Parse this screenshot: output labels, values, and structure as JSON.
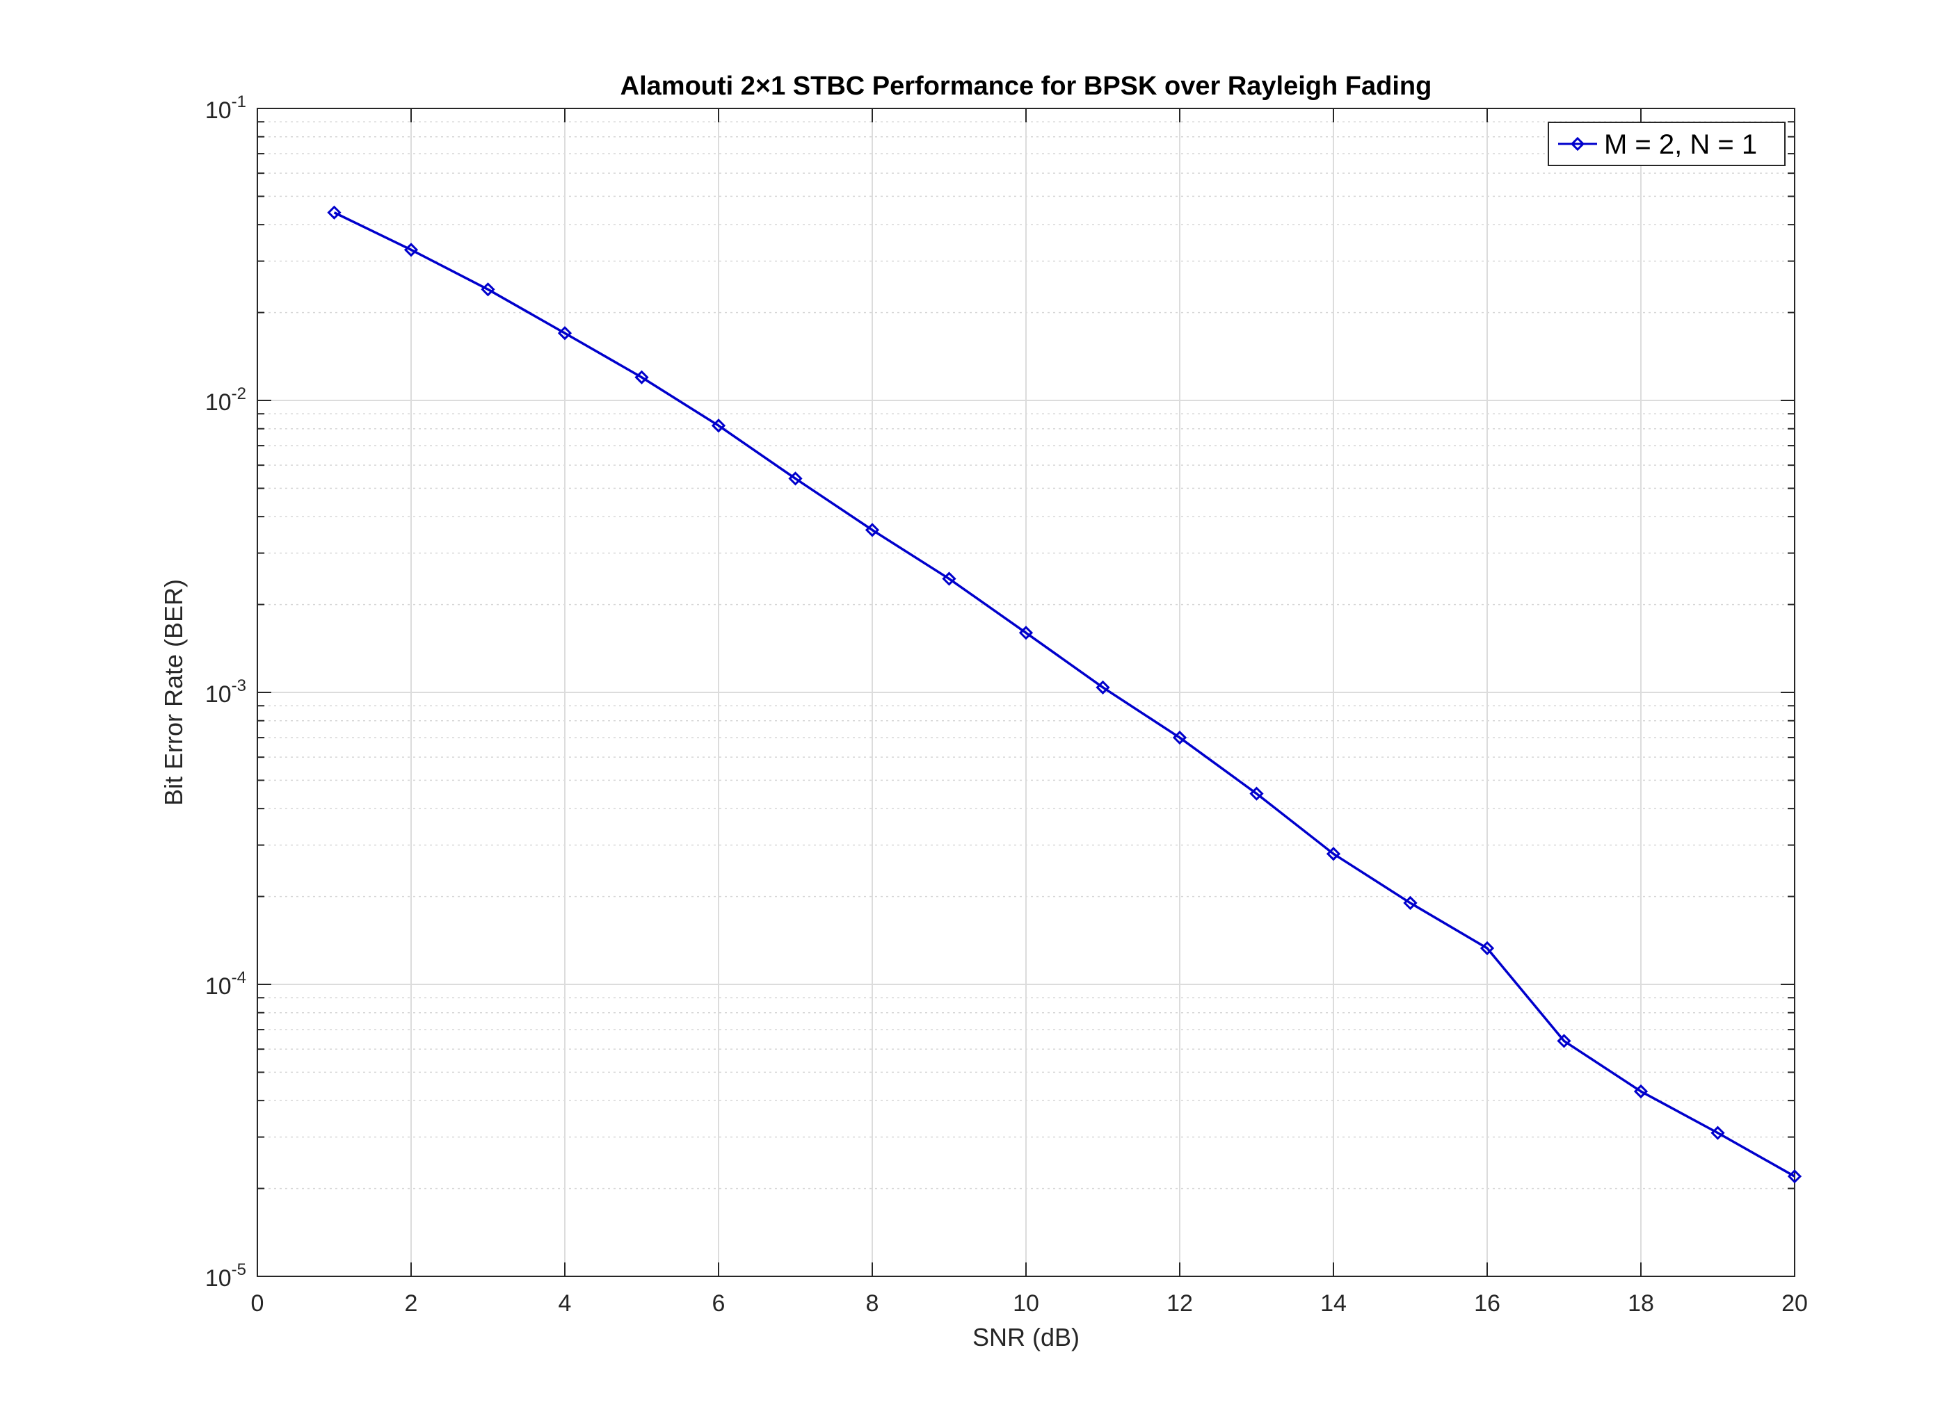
{
  "chart_data": {
    "type": "line",
    "title": "Alamouti 2×1 STBC Performance for BPSK over Rayleigh Fading",
    "xlabel": "SNR (dB)",
    "ylabel": "Bit Error Rate (BER)",
    "xlim": [
      0,
      20
    ],
    "ylim": [
      1e-05,
      0.1
    ],
    "yscale": "log",
    "grid": true,
    "minor_grid": true,
    "legend_position": "top-right",
    "x_ticks": [
      0,
      2,
      4,
      6,
      8,
      10,
      12,
      14,
      16,
      18,
      20
    ],
    "y_ticks": [
      {
        "base": "10",
        "exp": "-5",
        "value": 1e-05
      },
      {
        "base": "10",
        "exp": "-4",
        "value": 0.0001
      },
      {
        "base": "10",
        "exp": "-3",
        "value": 0.001
      },
      {
        "base": "10",
        "exp": "-2",
        "value": 0.01
      },
      {
        "base": "10",
        "exp": "-1",
        "value": 0.1
      }
    ],
    "series": [
      {
        "name": "M = 2, N = 1",
        "color": "#0000cc",
        "marker": "diamond",
        "x": [
          1,
          2,
          3,
          4,
          5,
          6,
          7,
          8,
          9,
          10,
          11,
          12,
          13,
          14,
          15,
          16,
          17,
          18,
          19,
          20
        ],
        "y": [
          0.044,
          0.0328,
          0.024,
          0.017,
          0.012,
          0.0082,
          0.0054,
          0.0036,
          0.00245,
          0.0016,
          0.00104,
          0.0007,
          0.00045,
          0.00028,
          0.00019,
          0.000133,
          6.4e-05,
          4.3e-05,
          3.1e-05,
          2.2e-05
        ]
      }
    ]
  }
}
